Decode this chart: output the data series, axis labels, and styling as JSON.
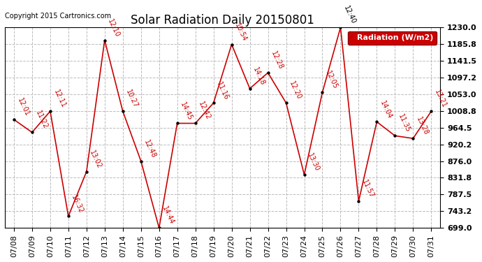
{
  "title": "Solar Radiation Daily 20150801",
  "copyright": "Copyright 2015 Cartronics.com",
  "legend_label": "Radiation (W/m2)",
  "background_color": "#ffffff",
  "line_color": "#cc0000",
  "marker_color": "#000000",
  "grid_color": "#bbbbbb",
  "label_color": "#cc0000",
  "peak_label_color": "#000000",
  "ylim": [
    699.0,
    1230.0
  ],
  "yticks": [
    699.0,
    743.2,
    787.5,
    831.8,
    876.0,
    920.2,
    964.5,
    1008.8,
    1053.0,
    1097.2,
    1141.5,
    1185.8,
    1230.0
  ],
  "dates": [
    "07/08",
    "07/09",
    "07/10",
    "07/11",
    "07/12",
    "07/13",
    "07/14",
    "07/15",
    "07/16",
    "07/17",
    "07/18",
    "07/19",
    "07/20",
    "07/21",
    "07/22",
    "07/23",
    "07/24",
    "07/25",
    "07/26",
    "07/27",
    "07/28",
    "07/29",
    "07/30",
    "07/31"
  ],
  "values": [
    986.0,
    952.0,
    1008.0,
    730.0,
    848.0,
    1196.0,
    1008.0,
    876.0,
    699.0,
    976.0,
    976.0,
    1030.0,
    1185.0,
    1068.0,
    1110.0,
    1030.0,
    840.0,
    1058.0,
    1230.0,
    770.0,
    980.0,
    943.0,
    936.0,
    1008.0
  ],
  "point_labels": [
    "12:01",
    "11:22",
    "12:11",
    "16:32",
    "13:02",
    "12:10",
    "10:27",
    "12:48",
    "14:44",
    "14:45",
    "12:42",
    "11:16",
    "10:54",
    "14:18",
    "12:28",
    "12:20",
    "13:30",
    "12:05",
    "12:40",
    "11:57",
    "14:04",
    "11:35",
    "13:28",
    "13:21"
  ],
  "peak_index": 18,
  "title_fontsize": 12,
  "tick_fontsize": 8,
  "annot_fontsize": 7,
  "copyright_fontsize": 7,
  "legend_fontsize": 8
}
